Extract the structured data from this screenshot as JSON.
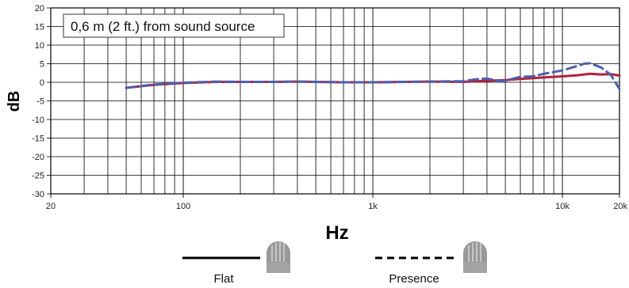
{
  "chart_data": {
    "type": "line",
    "annotation": "0,6 m (2 ft.) from sound source",
    "xlabel": "Hz",
    "ylabel": "dB",
    "x_scale": "log",
    "xlim": [
      20,
      20000
    ],
    "ylim": [
      -30,
      20
    ],
    "grid": true,
    "y_ticks": [
      20,
      15,
      10,
      5,
      0,
      -5,
      -10,
      -15,
      -20,
      -25,
      -30
    ],
    "x_tick_labels": [
      {
        "value": 20,
        "label": "20"
      },
      {
        "value": 100,
        "label": "100"
      },
      {
        "value": 1000,
        "label": "1k"
      },
      {
        "value": 10000,
        "label": "10k"
      },
      {
        "value": 20000,
        "label": "20k"
      }
    ],
    "x_minor": [
      30,
      40,
      50,
      60,
      70,
      80,
      90,
      200,
      300,
      400,
      500,
      600,
      700,
      800,
      900,
      2000,
      3000,
      4000,
      5000,
      6000,
      7000,
      8000,
      9000
    ],
    "series": [
      {
        "name": "Flat",
        "color": "#b0213e",
        "dash": false,
        "points": [
          [
            50,
            -1.5
          ],
          [
            70,
            -0.7
          ],
          [
            100,
            -0.2
          ],
          [
            150,
            0.1
          ],
          [
            200,
            0.1
          ],
          [
            300,
            0.1
          ],
          [
            400,
            0.2
          ],
          [
            500,
            0.1
          ],
          [
            700,
            0
          ],
          [
            1000,
            0
          ],
          [
            1500,
            0.1
          ],
          [
            2000,
            0.2
          ],
          [
            3000,
            0.1
          ],
          [
            4000,
            0.4
          ],
          [
            5000,
            0.6
          ],
          [
            6000,
            0.9
          ],
          [
            7000,
            1.1
          ],
          [
            8000,
            1.3
          ],
          [
            10000,
            1.6
          ],
          [
            12000,
            1.9
          ],
          [
            14000,
            2.3
          ],
          [
            16000,
            2.1
          ],
          [
            18000,
            2.2
          ],
          [
            20000,
            1.8
          ]
        ]
      },
      {
        "name": "Presence",
        "color": "#4d5fad",
        "dash": true,
        "points": [
          [
            50,
            -1.5
          ],
          [
            70,
            -0.6
          ],
          [
            100,
            -0.1
          ],
          [
            150,
            0.2
          ],
          [
            200,
            0.1
          ],
          [
            300,
            0.1
          ],
          [
            400,
            0.2
          ],
          [
            500,
            0.1
          ],
          [
            700,
            0
          ],
          [
            1000,
            0
          ],
          [
            1500,
            0.1
          ],
          [
            2000,
            0.2
          ],
          [
            3000,
            0.3
          ],
          [
            3500,
            0.8
          ],
          [
            4000,
            1
          ],
          [
            4500,
            0.5
          ],
          [
            5000,
            0.4
          ],
          [
            6000,
            1.5
          ],
          [
            7000,
            1.6
          ],
          [
            8000,
            2.3
          ],
          [
            10000,
            3.2
          ],
          [
            12000,
            4.4
          ],
          [
            13000,
            5
          ],
          [
            14000,
            5.1
          ],
          [
            16000,
            4
          ],
          [
            18000,
            2
          ],
          [
            20000,
            -1.8
          ]
        ]
      }
    ],
    "legend": [
      {
        "label": "Flat",
        "style": "solid",
        "icon": "microphone-flat-icon"
      },
      {
        "label": "Presence",
        "style": "dashed",
        "icon": "microphone-presence-icon"
      }
    ]
  }
}
